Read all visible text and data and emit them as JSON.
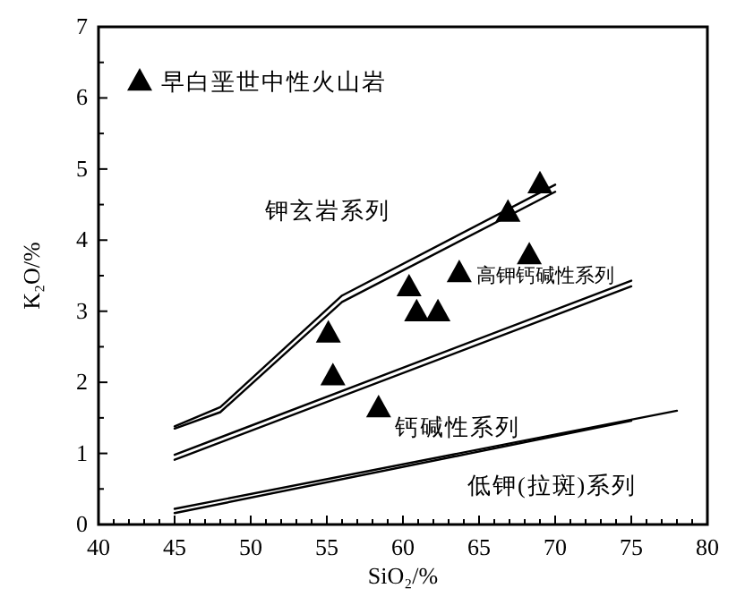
{
  "chart_data": {
    "type": "scatter",
    "xlabel": "SiO₂/%",
    "ylabel": "K₂O/%",
    "xlim": [
      40,
      80
    ],
    "ylim": [
      0,
      7
    ],
    "legend": "top left",
    "xticks": [
      40,
      {
        "value": 41,
        "label": null
      },
      {
        "value": 42,
        "label": null
      },
      {
        "value": 43,
        "label": null
      },
      {
        "value": 44,
        "label": null
      },
      45,
      {
        "value": 46,
        "label": null
      },
      {
        "value": 47,
        "label": null
      },
      {
        "value": 48,
        "label": null
      },
      {
        "value": 49,
        "label": null
      },
      50,
      {
        "value": 51,
        "label": null
      },
      {
        "value": 52,
        "label": null
      },
      {
        "value": 53,
        "label": null
      },
      {
        "value": 54,
        "label": null
      },
      55,
      {
        "value": 56,
        "label": null
      },
      {
        "value": 57,
        "label": null
      },
      {
        "value": 58,
        "label": null
      },
      {
        "value": 59,
        "label": null
      },
      60,
      {
        "value": 61,
        "label": null
      },
      {
        "value": 62,
        "label": null
      },
      {
        "value": 63,
        "label": null
      },
      {
        "value": 64,
        "label": null
      },
      65,
      {
        "value": 66,
        "label": null
      },
      {
        "value": 67,
        "label": null
      },
      {
        "value": 68,
        "label": null
      },
      {
        "value": 69,
        "label": null
      },
      70,
      {
        "value": 71,
        "label": null
      },
      {
        "value": 72,
        "label": null
      },
      {
        "value": 73,
        "label": null
      },
      {
        "value": 74,
        "label": null
      },
      75,
      {
        "value": 76,
        "label": null
      },
      {
        "value": 77,
        "label": null
      },
      {
        "value": 78,
        "label": null
      },
      {
        "value": 79,
        "label": null
      },
      80
    ],
    "yticks": [
      0,
      {
        "value": 0.5,
        "label": null
      },
      1,
      {
        "value": 1.5,
        "label": null
      },
      2,
      {
        "value": 2.5,
        "label": null
      },
      3,
      {
        "value": 3.5,
        "label": null
      },
      4,
      {
        "value": 4.5,
        "label": null
      },
      5,
      {
        "value": 5.5,
        "label": null
      },
      6,
      {
        "value": 6.5,
        "label": null
      },
      7
    ],
    "series": [
      {
        "name": "早白垩世中性火山岩",
        "marker": "triangle",
        "color": "#000000",
        "x": [
          69.0,
          66.9,
          68.3,
          63.7,
          60.4,
          60.9,
          62.3,
          55.1,
          55.4,
          58.4
        ],
        "values": [
          4.8,
          4.4,
          3.8,
          3.55,
          3.35,
          3.0,
          3.0,
          2.7,
          2.1,
          1.65
        ]
      },
      {
        "type": "line",
        "color": "#000000",
        "x": [
          45,
          48,
          56,
          70
        ],
        "values": [
          1.38,
          1.65,
          3.22,
          4.78
        ]
      },
      {
        "type": "line",
        "color": "#000000",
        "x": [
          45,
          48,
          56,
          70
        ],
        "values": [
          1.35,
          1.58,
          3.13,
          4.68
        ]
      },
      {
        "type": "line",
        "color": "#000000",
        "x": [
          45,
          75
        ],
        "values": [
          0.98,
          3.43
        ]
      },
      {
        "type": "line",
        "color": "#000000",
        "x": [
          45,
          75
        ],
        "values": [
          0.91,
          3.35
        ]
      },
      {
        "type": "line",
        "color": "#000000",
        "x": [
          45,
          78
        ],
        "values": [
          0.22,
          1.6
        ]
      },
      {
        "type": "line",
        "color": "#000000",
        "x": [
          45,
          75
        ],
        "values": [
          0.16,
          1.46
        ]
      }
    ],
    "annotations": [
      "钾玄岩系列",
      "高钾钙碱性系列",
      "钙碱性系列",
      "低钾(拉斑)系列"
    ]
  }
}
